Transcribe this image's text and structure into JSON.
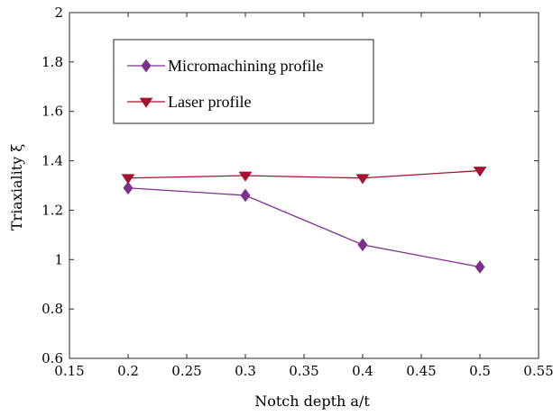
{
  "chart_data": {
    "type": "line",
    "xlabel": "Notch depth a/t",
    "ylabel": "Triaxiality ξ",
    "xlim": [
      0.15,
      0.55
    ],
    "ylim": [
      0.6,
      2
    ],
    "x_ticks": [
      "0.15",
      "0.2",
      "0.25",
      "0.3",
      "0.35",
      "0.4",
      "0.45",
      "0.5",
      "0.55"
    ],
    "y_ticks": [
      "0.6",
      "0.8",
      "1",
      "1.2",
      "1.4",
      "1.6",
      "1.8",
      "2"
    ],
    "grid": false,
    "legend_position": "top-left",
    "x": [
      0.2,
      0.3,
      0.4,
      0.5
    ],
    "series": [
      {
        "name": "Micromachining profile",
        "values": [
          1.29,
          1.26,
          1.06,
          0.97
        ],
        "color": "#7E2F8E",
        "marker": "diamond"
      },
      {
        "name": "Laser profile",
        "values": [
          1.33,
          1.34,
          1.33,
          1.36
        ],
        "color": "#A2142F",
        "marker": "triangle-down"
      }
    ]
  }
}
